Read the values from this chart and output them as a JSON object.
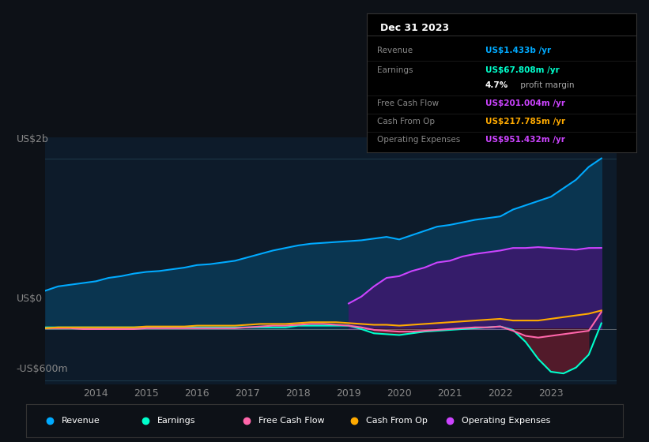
{
  "bg_color": "#0d1117",
  "plot_bg_color": "#0d1b2a",
  "ylabel_top": "US$2b",
  "ylabel_bottom": "-US$600m",
  "ylabel_zero": "US$0",
  "x_years": [
    2013.0,
    2013.25,
    2013.5,
    2013.75,
    2014.0,
    2014.25,
    2014.5,
    2014.75,
    2015.0,
    2015.25,
    2015.5,
    2015.75,
    2016.0,
    2016.25,
    2016.5,
    2016.75,
    2017.0,
    2017.25,
    2017.5,
    2017.75,
    2018.0,
    2018.25,
    2018.5,
    2018.75,
    2019.0,
    2019.25,
    2019.5,
    2019.75,
    2020.0,
    2020.25,
    2020.5,
    2020.75,
    2021.0,
    2021.25,
    2021.5,
    2021.75,
    2022.0,
    2022.25,
    2022.5,
    2022.75,
    2023.0,
    2023.25,
    2023.5,
    2023.75,
    2024.0
  ],
  "revenue": [
    0.45,
    0.5,
    0.52,
    0.54,
    0.56,
    0.6,
    0.62,
    0.65,
    0.67,
    0.68,
    0.7,
    0.72,
    0.75,
    0.76,
    0.78,
    0.8,
    0.84,
    0.88,
    0.92,
    0.95,
    0.98,
    1.0,
    1.01,
    1.02,
    1.03,
    1.04,
    1.06,
    1.08,
    1.05,
    1.1,
    1.15,
    1.2,
    1.22,
    1.25,
    1.28,
    1.3,
    1.32,
    1.4,
    1.45,
    1.5,
    1.55,
    1.65,
    1.75,
    1.9,
    2.0
  ],
  "operating_expenses": [
    0.0,
    0.0,
    0.0,
    0.0,
    0.0,
    0.0,
    0.0,
    0.0,
    0.0,
    0.0,
    0.0,
    0.0,
    0.0,
    0.0,
    0.0,
    0.0,
    0.0,
    0.0,
    0.0,
    0.0,
    0.0,
    0.0,
    0.0,
    0.0,
    0.3,
    0.38,
    0.5,
    0.6,
    0.62,
    0.68,
    0.72,
    0.78,
    0.8,
    0.85,
    0.88,
    0.9,
    0.92,
    0.95,
    0.95,
    0.96,
    0.95,
    0.94,
    0.93,
    0.95,
    0.951
  ],
  "earnings": [
    0.02,
    0.02,
    0.02,
    0.02,
    0.02,
    0.02,
    0.02,
    0.02,
    0.02,
    0.02,
    0.02,
    0.02,
    0.02,
    0.02,
    0.02,
    0.02,
    0.02,
    0.02,
    0.02,
    0.02,
    0.04,
    0.04,
    0.04,
    0.04,
    0.04,
    0.0,
    -0.05,
    -0.06,
    -0.07,
    -0.05,
    -0.03,
    -0.02,
    -0.01,
    0.0,
    0.01,
    0.02,
    0.03,
    -0.01,
    -0.15,
    -0.35,
    -0.5,
    -0.52,
    -0.45,
    -0.3,
    0.068
  ],
  "free_cash_flow": [
    0.01,
    0.01,
    0.01,
    0.0,
    0.0,
    0.0,
    0.0,
    0.0,
    0.01,
    0.01,
    0.01,
    0.01,
    0.01,
    0.01,
    0.01,
    0.01,
    0.02,
    0.03,
    0.04,
    0.04,
    0.05,
    0.06,
    0.06,
    0.05,
    0.04,
    0.02,
    -0.01,
    -0.02,
    -0.03,
    -0.03,
    -0.02,
    -0.01,
    0.0,
    0.01,
    0.02,
    0.02,
    0.03,
    -0.02,
    -0.08,
    -0.1,
    -0.08,
    -0.06,
    -0.04,
    -0.02,
    0.201
  ],
  "cash_from_op": [
    0.01,
    0.02,
    0.02,
    0.02,
    0.02,
    0.02,
    0.02,
    0.02,
    0.03,
    0.03,
    0.03,
    0.03,
    0.04,
    0.04,
    0.04,
    0.04,
    0.05,
    0.06,
    0.06,
    0.06,
    0.07,
    0.08,
    0.08,
    0.08,
    0.07,
    0.06,
    0.05,
    0.05,
    0.04,
    0.05,
    0.06,
    0.07,
    0.08,
    0.09,
    0.1,
    0.11,
    0.12,
    0.1,
    0.1,
    0.1,
    0.12,
    0.14,
    0.16,
    0.18,
    0.2178
  ],
  "revenue_color": "#00aaff",
  "revenue_fill_color": "#0a3550",
  "operating_expenses_color": "#cc44ff",
  "operating_expenses_fill_color": "#3a1a6e",
  "earnings_color": "#00ffcc",
  "earnings_fill_neg_color": "#5a1a2a",
  "free_cash_flow_color": "#ff66aa",
  "cash_from_op_color": "#ffaa00",
  "info_box_bg": "#000000",
  "info_box_border": "#333333",
  "legend_bg": "#0d1117",
  "legend_border": "#333333",
  "grid_color": "#1e3a4a",
  "tick_color": "#888888",
  "label_color": "#888888",
  "info_title": "Dec 31 2023",
  "legend_items": [
    {
      "label": "Revenue",
      "color": "#00aaff"
    },
    {
      "label": "Earnings",
      "color": "#00ffcc"
    },
    {
      "label": "Free Cash Flow",
      "color": "#ff66aa"
    },
    {
      "label": "Cash From Op",
      "color": "#ffaa00"
    },
    {
      "label": "Operating Expenses",
      "color": "#cc44ff"
    }
  ],
  "ylim": [
    -0.65,
    2.25
  ],
  "xlim": [
    2013.0,
    2024.3
  ],
  "x_ticks": [
    2014,
    2015,
    2016,
    2017,
    2018,
    2019,
    2020,
    2021,
    2022,
    2023
  ]
}
